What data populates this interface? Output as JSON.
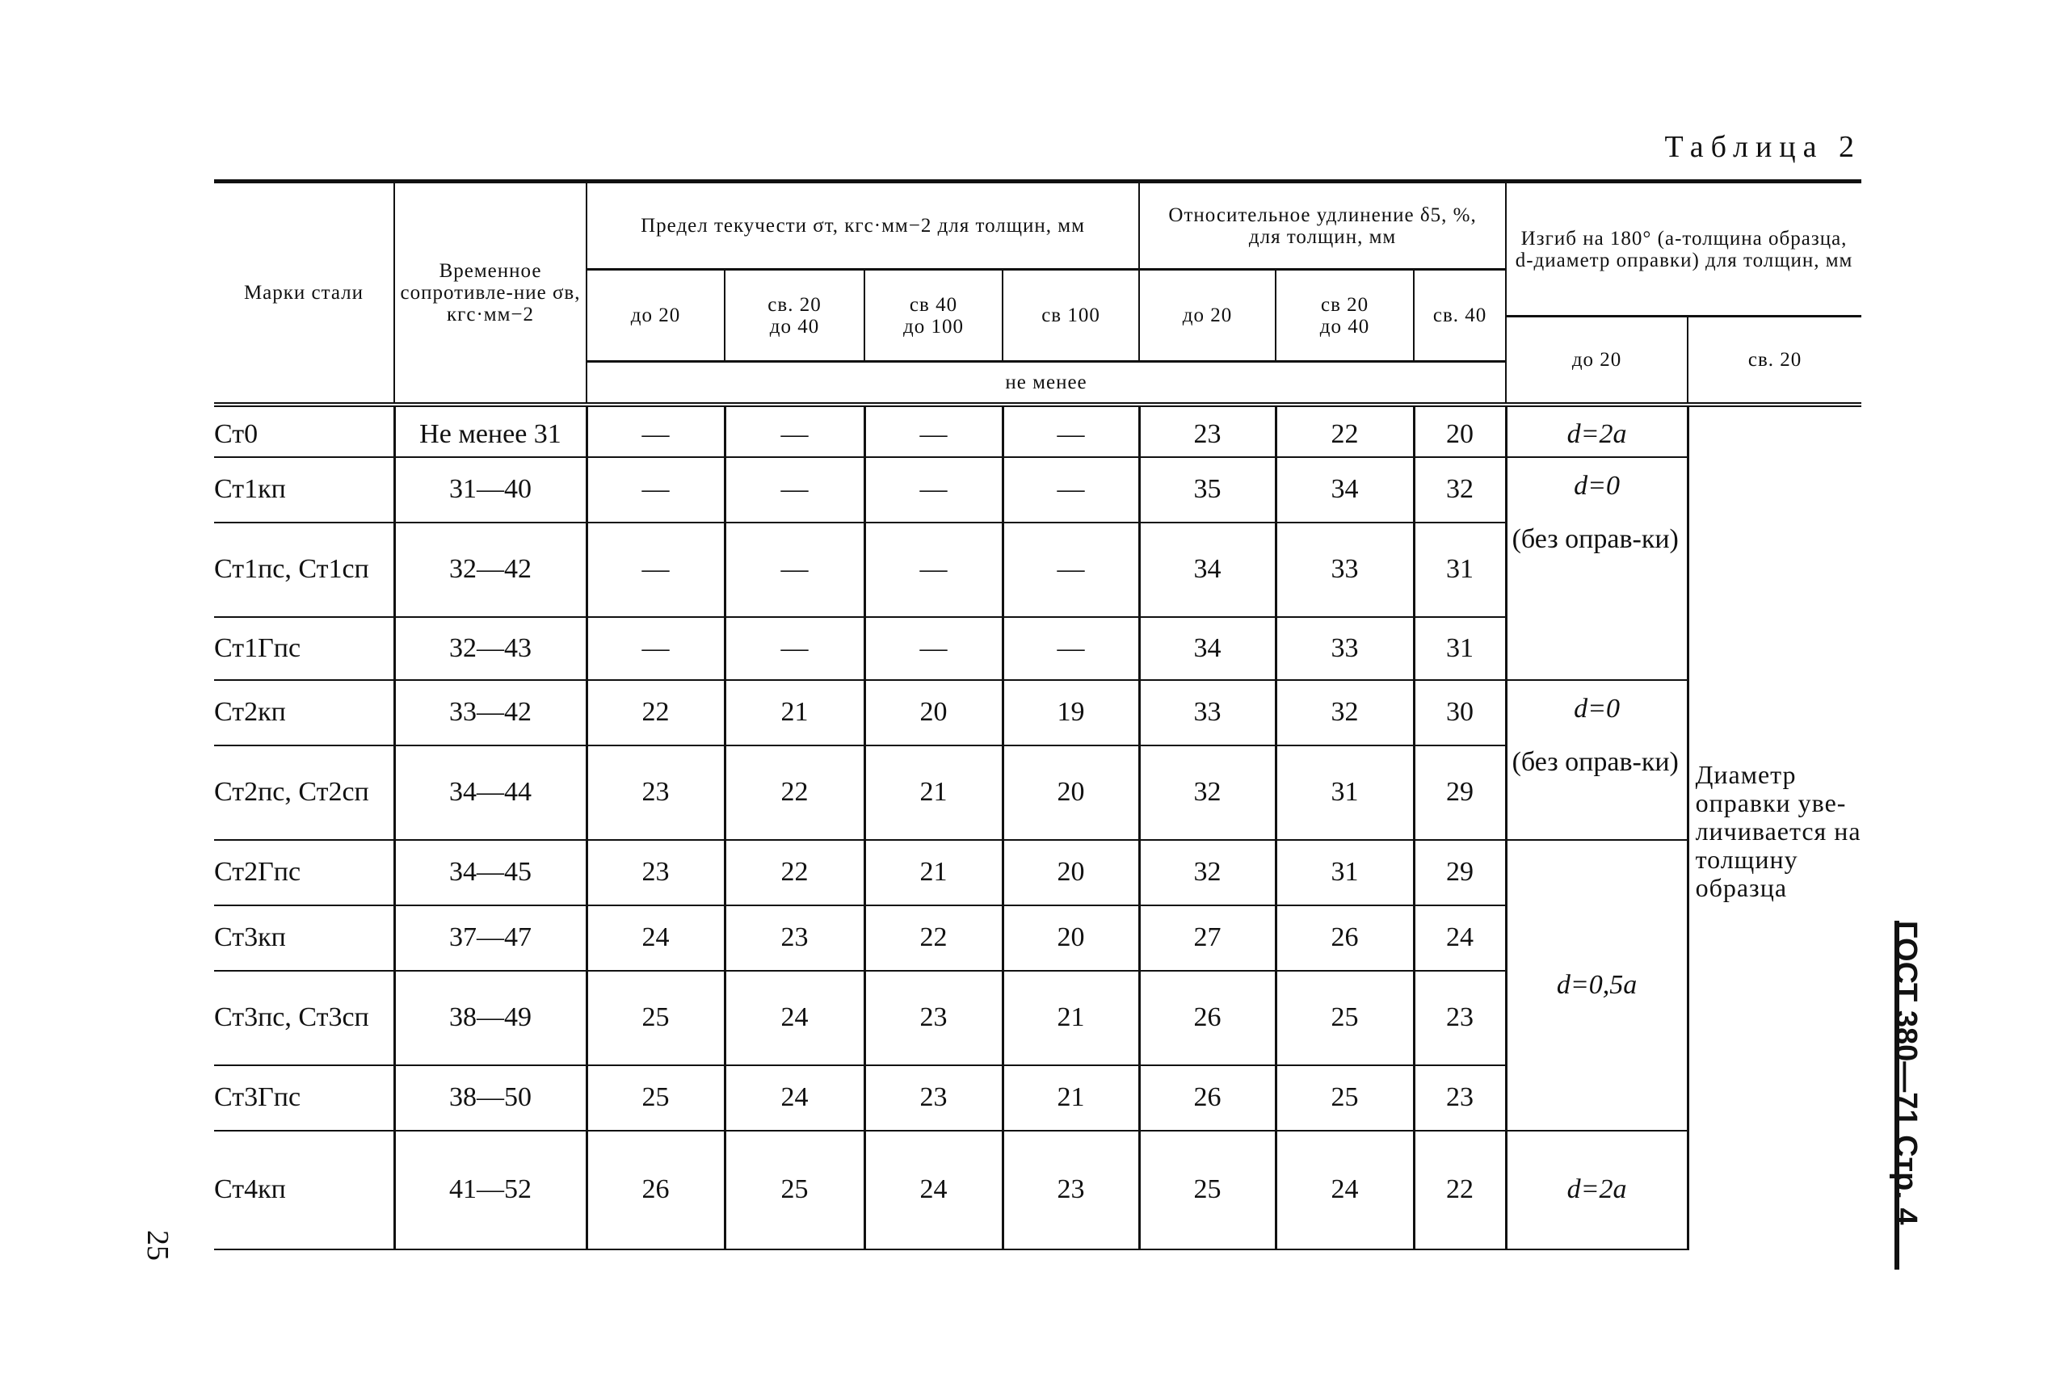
{
  "table_title": "Таблица 2",
  "header": {
    "grade": "Марки стали",
    "tensile": "Временное сопротивле-ние σв, кгс·мм−2",
    "yield": "Предел текучести σт, кгс·мм−2 для толщин, мм",
    "yield_sub": [
      "до 20",
      "св. 20 до 40",
      "св 40 до 100",
      "св 100"
    ],
    "elong": "Относительное удлинение δ5, %, для толщин, мм",
    "elong_sub": [
      "до 20",
      "св 20 до 40",
      "св. 40"
    ],
    "bend": "Изгиб на 180° (a-толщина образца, d-диаметр оправки) для толщин, мм",
    "bend_sub": [
      "до 20",
      "св. 20"
    ],
    "not_less": "не менее"
  },
  "rows": [
    {
      "grade": "Ст0",
      "tensile": "Не менее 31",
      "yield": [
        "—",
        "—",
        "—",
        "—"
      ],
      "elong": [
        "23",
        "22",
        "20"
      ]
    },
    {
      "grade": "Ст1кп",
      "tensile": "31—40",
      "yield": [
        "—",
        "—",
        "—",
        "—"
      ],
      "elong": [
        "35",
        "34",
        "32"
      ]
    },
    {
      "grade": "Ст1пс, Ст1сп",
      "tensile": "32—42",
      "yield": [
        "—",
        "—",
        "—",
        "—"
      ],
      "elong": [
        "34",
        "33",
        "31"
      ]
    },
    {
      "grade": "Ст1Гпс",
      "tensile": "32—43",
      "yield": [
        "—",
        "—",
        "—",
        "—"
      ],
      "elong": [
        "34",
        "33",
        "31"
      ]
    },
    {
      "grade": "Ст2кп",
      "tensile": "33—42",
      "yield": [
        "22",
        "21",
        "20",
        "19"
      ],
      "elong": [
        "33",
        "32",
        "30"
      ]
    },
    {
      "grade": "Ст2пс, Ст2сп",
      "tensile": "34—44",
      "yield": [
        "23",
        "22",
        "21",
        "20"
      ],
      "elong": [
        "32",
        "31",
        "29"
      ]
    },
    {
      "grade": "Ст2Гпс",
      "tensile": "34—45",
      "yield": [
        "23",
        "22",
        "21",
        "20"
      ],
      "elong": [
        "32",
        "31",
        "29"
      ]
    },
    {
      "grade": "Ст3кп",
      "tensile": "37—47",
      "yield": [
        "24",
        "23",
        "22",
        "20"
      ],
      "elong": [
        "27",
        "26",
        "24"
      ]
    },
    {
      "grade": "Ст3пс, Ст3сп",
      "tensile": "38—49",
      "yield": [
        "25",
        "24",
        "23",
        "21"
      ],
      "elong": [
        "26",
        "25",
        "23"
      ]
    },
    {
      "grade": "Ст3Гпс",
      "tensile": "38—50",
      "yield": [
        "25",
        "24",
        "23",
        "21"
      ],
      "elong": [
        "26",
        "25",
        "23"
      ]
    },
    {
      "grade": "Ст4кп",
      "tensile": "41—52",
      "yield": [
        "26",
        "25",
        "24",
        "23"
      ],
      "elong": [
        "25",
        "24",
        "22"
      ]
    }
  ],
  "bend_to20": [
    {
      "d": "d=2a",
      "note": ""
    },
    {
      "d": "d=0",
      "note": "(без оправ-ки)"
    },
    {
      "d": "d=0",
      "note": "(без оправ-ки)"
    },
    {
      "d": "d=0,5a",
      "note": ""
    },
    {
      "d": "d=2a",
      "note": ""
    }
  ],
  "bend_over20": "Диаметр оправки уве-личивается на толщину образца",
  "side_label": "ГОСТ 380—71 Стр. 4",
  "page_number": "25"
}
